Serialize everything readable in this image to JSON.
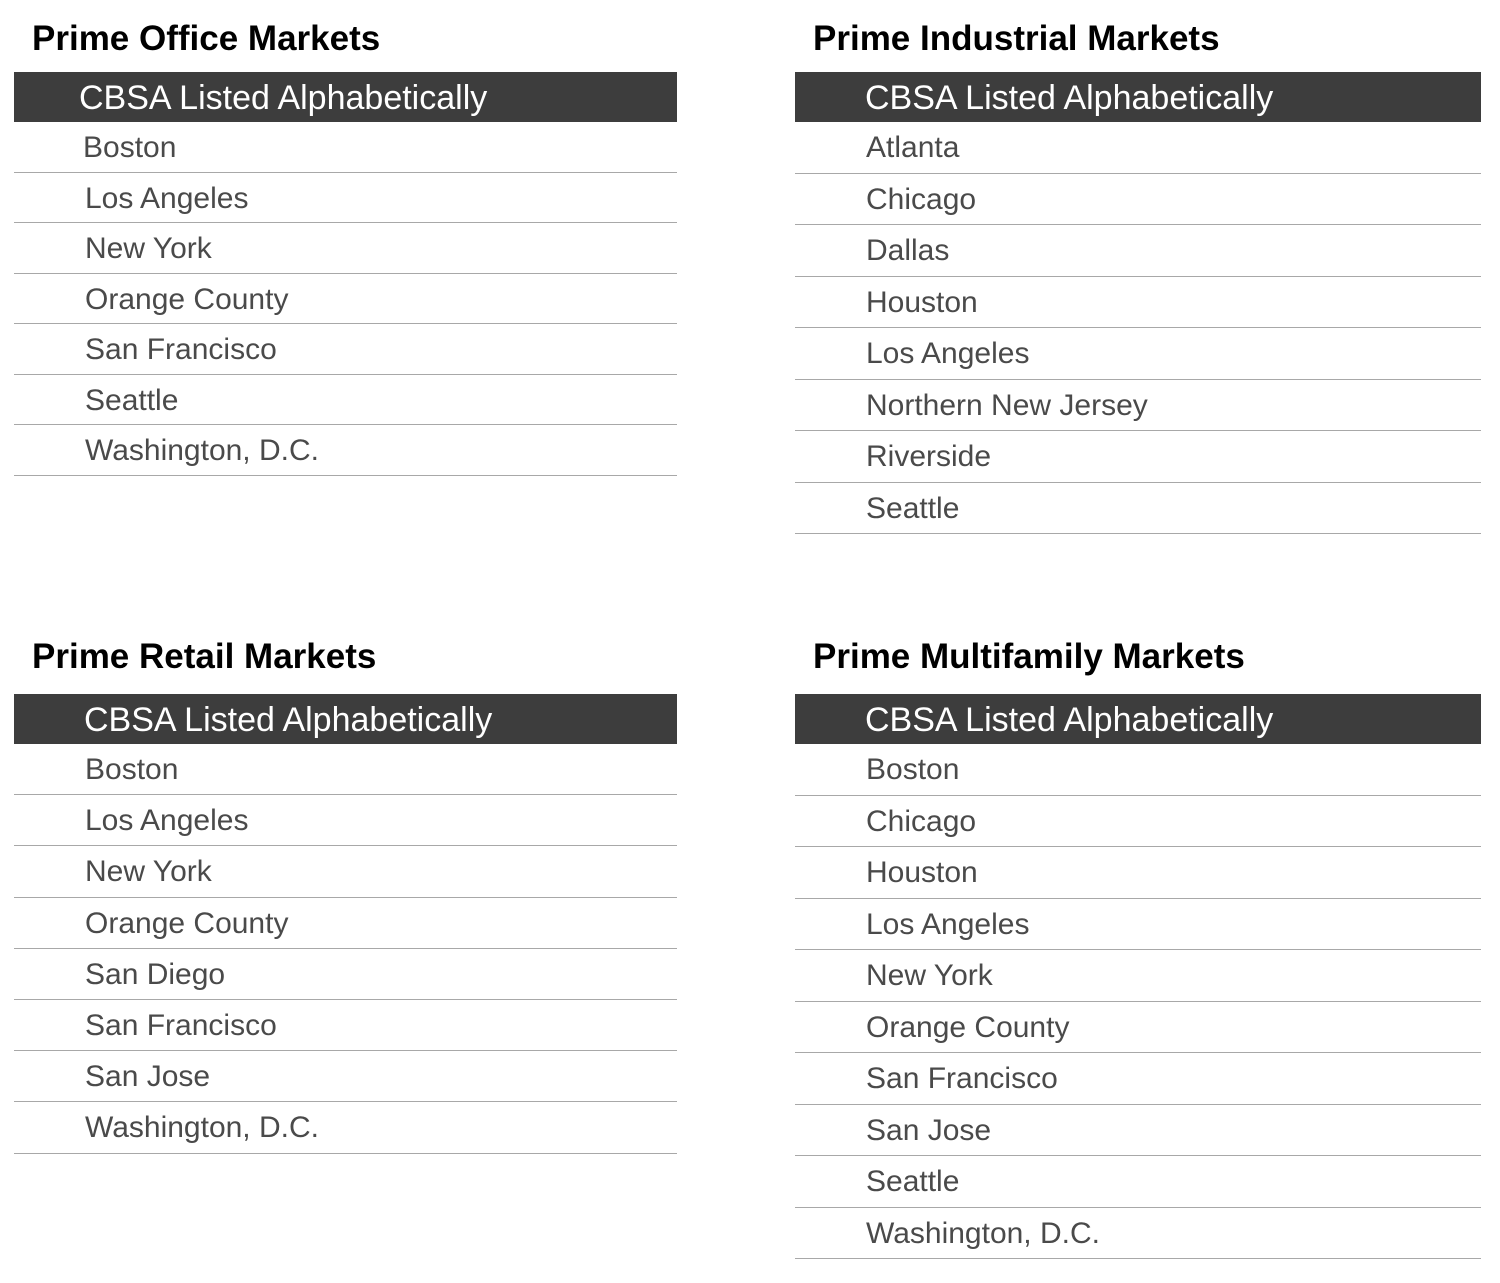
{
  "panels": [
    {
      "title": "Prime Office Markets",
      "header": "CBSA Listed Alphabetically",
      "rows": [
        "Boston",
        "Los Angeles",
        "New York",
        "Orange County",
        "San Francisco",
        "Seattle",
        "Washington, D.C."
      ]
    },
    {
      "title": "Prime Industrial Markets",
      "header": "CBSA Listed Alphabetically",
      "rows": [
        "Atlanta",
        "Chicago",
        "Dallas",
        "Houston",
        "Los Angeles",
        "Northern New Jersey",
        "Riverside",
        "Seattle"
      ]
    },
    {
      "title": "Prime Retail Markets",
      "header": "CBSA Listed Alphabetically",
      "rows": [
        "Boston",
        "Los Angeles",
        "New York",
        "Orange County",
        "San Diego",
        "San Francisco",
        "San Jose",
        "Washington, D.C."
      ]
    },
    {
      "title": "Prime Multifamily Markets",
      "header": "CBSA Listed Alphabetically",
      "rows": [
        "Boston",
        "Chicago",
        "Houston",
        "Los Angeles",
        "New York",
        "Orange County",
        "San Francisco",
        "San Jose",
        "Seattle",
        "Washington, D.C."
      ]
    }
  ],
  "colors": {
    "header_bg": "#3d3d3d",
    "header_text": "#ffffff",
    "row_text": "#4a4a4a",
    "divider": "#a8a8a8",
    "title_text": "#000000"
  }
}
